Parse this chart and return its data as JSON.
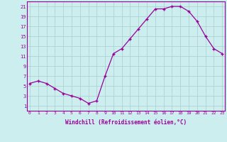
{
  "x": [
    0,
    1,
    2,
    3,
    4,
    5,
    6,
    7,
    8,
    9,
    10,
    11,
    12,
    13,
    14,
    15,
    16,
    17,
    18,
    19,
    20,
    21,
    22,
    23
  ],
  "y": [
    5.5,
    6.0,
    5.5,
    4.5,
    3.5,
    3.0,
    2.5,
    1.5,
    2.0,
    7.0,
    11.5,
    12.5,
    14.5,
    16.5,
    18.5,
    20.5,
    20.5,
    21.0,
    21.0,
    20.0,
    18.0,
    15.0,
    12.5,
    11.5
  ],
  "line_color": "#990099",
  "marker": "+",
  "marker_size": 3,
  "bg_color": "#cceeee",
  "grid_color": "#aacccc",
  "xlabel": "Windchill (Refroidissement éolien,°C)",
  "yticks": [
    1,
    3,
    5,
    7,
    9,
    11,
    13,
    15,
    17,
    19,
    21
  ],
  "xticks": [
    0,
    1,
    2,
    3,
    4,
    5,
    6,
    7,
    8,
    9,
    10,
    11,
    12,
    13,
    14,
    15,
    16,
    17,
    18,
    19,
    20,
    21,
    22,
    23
  ],
  "ylim": [
    0,
    22
  ],
  "xlim": [
    -0.3,
    23.3
  ]
}
